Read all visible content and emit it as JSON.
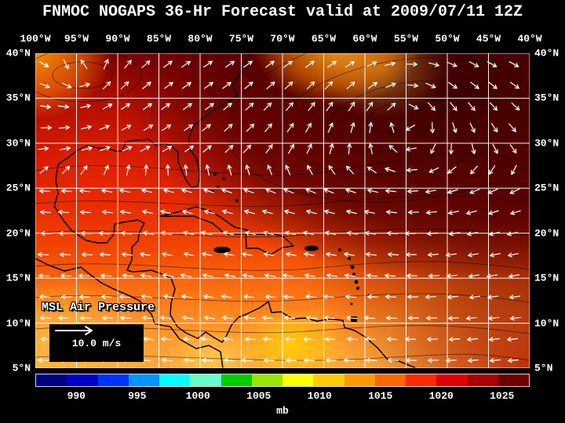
{
  "title": "FNMOC NOGAPS 36-Hr Forecast valid at 2009/07/11 12Z",
  "axes": {
    "top_labels": [
      "100°W",
      "95°W",
      "90°W",
      "85°W",
      "80°W",
      "75°W",
      "70°W",
      "65°W",
      "60°W",
      "55°W",
      "50°W",
      "45°W",
      "40°W"
    ],
    "left_labels": [
      "40°N",
      "35°N",
      "30°N",
      "25°N",
      "20°N",
      "15°N",
      "10°N",
      "5°N"
    ],
    "right_labels": [
      "40°N",
      "35°N",
      "30°N",
      "25°N",
      "20°N",
      "15°N",
      "10°N",
      "5°N"
    ]
  },
  "map": {
    "field_label": "MSL Air Pressure",
    "wind_legend": {
      "speed_label": "10.0 m/s",
      "arrow_icon": "right-arrow"
    }
  },
  "colorbar": {
    "unit": "mb",
    "tick_labels": [
      "990",
      "995",
      "1000",
      "1005",
      "1010",
      "1015",
      "1020",
      "1025"
    ],
    "segment_colors": [
      "#000082",
      "#0000c8",
      "#0032ff",
      "#0096ff",
      "#00ffff",
      "#66ffcc",
      "#00cc00",
      "#99e600",
      "#ffff00",
      "#ffcc00",
      "#ff9900",
      "#ff6600",
      "#ff2a00",
      "#e00000",
      "#aa0000",
      "#700000"
    ]
  },
  "chart_data": {
    "type": "heatmap",
    "title": "FNMOC NOGAPS 36-Hr Forecast valid at 2009/07/11 12Z",
    "field": "MSL Air Pressure",
    "unit": "mb",
    "lon_ticks": [
      "100°W",
      "95°W",
      "90°W",
      "85°W",
      "80°W",
      "75°W",
      "70°W",
      "65°W",
      "60°W",
      "55°W",
      "50°W",
      "45°W",
      "40°W"
    ],
    "lat_ticks": [
      "40°N",
      "35°N",
      "30°N",
      "25°N",
      "20°N",
      "15°N",
      "10°N",
      "5°N"
    ],
    "colorbar_values": [
      990,
      995,
      1000,
      1005,
      1010,
      1015,
      1020,
      1025
    ],
    "wind_reference_speed": "10.0 m/s",
    "overlay": "wind vector field with high-pressure (dark) region in northeast quadrant and lower pressure (orange/yellow) along the southern edge"
  }
}
